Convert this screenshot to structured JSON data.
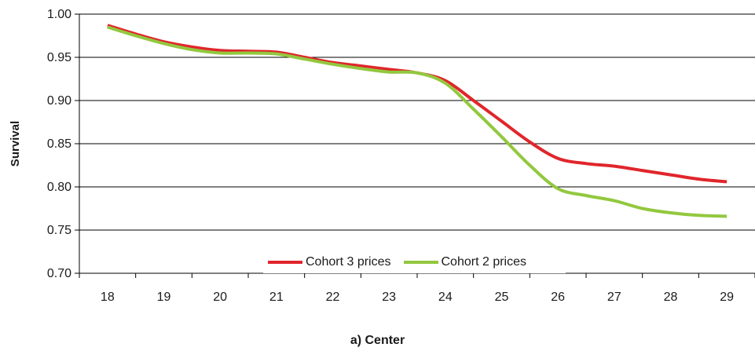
{
  "chart_data": {
    "type": "line",
    "title": "a) Center",
    "xlabel": "",
    "ylabel": "Survival",
    "categories": [
      "18",
      "19",
      "20",
      "21",
      "22",
      "23",
      "24",
      "25",
      "26",
      "27",
      "28",
      "29"
    ],
    "ylim": [
      0.7,
      1.0
    ],
    "yticks": [
      "0.70",
      "0.75",
      "0.80",
      "0.85",
      "0.90",
      "0.95",
      "1.00"
    ],
    "grid": true,
    "legend_position": "bottom-center",
    "series": [
      {
        "name": "Cohort 3 prices",
        "color": "#e0262b",
        "x": [
          18,
          18.5,
          19,
          19.5,
          20,
          20.5,
          21,
          21.5,
          22,
          22.5,
          23,
          23.5,
          24,
          24.5,
          25,
          25.5,
          26,
          26.5,
          27,
          27.5,
          28,
          28.5,
          29
        ],
        "values": [
          0.987,
          0.977,
          0.968,
          0.962,
          0.958,
          0.957,
          0.956,
          0.95,
          0.944,
          0.94,
          0.936,
          0.932,
          0.923,
          0.9,
          0.876,
          0.852,
          0.833,
          0.827,
          0.824,
          0.819,
          0.814,
          0.809,
          0.806
        ]
      },
      {
        "name": "Cohort 2 prices",
        "color": "#92c83e",
        "x": [
          18,
          18.5,
          19,
          19.5,
          20,
          20.5,
          21,
          21.5,
          22,
          22.5,
          23,
          23.5,
          24,
          24.5,
          25,
          25.5,
          26,
          26.5,
          27,
          27.5,
          28,
          28.5,
          29
        ],
        "values": [
          0.985,
          0.975,
          0.966,
          0.959,
          0.955,
          0.955,
          0.954,
          0.948,
          0.942,
          0.937,
          0.933,
          0.932,
          0.92,
          0.89,
          0.858,
          0.825,
          0.798,
          0.79,
          0.784,
          0.775,
          0.77,
          0.767,
          0.766
        ]
      }
    ]
  }
}
